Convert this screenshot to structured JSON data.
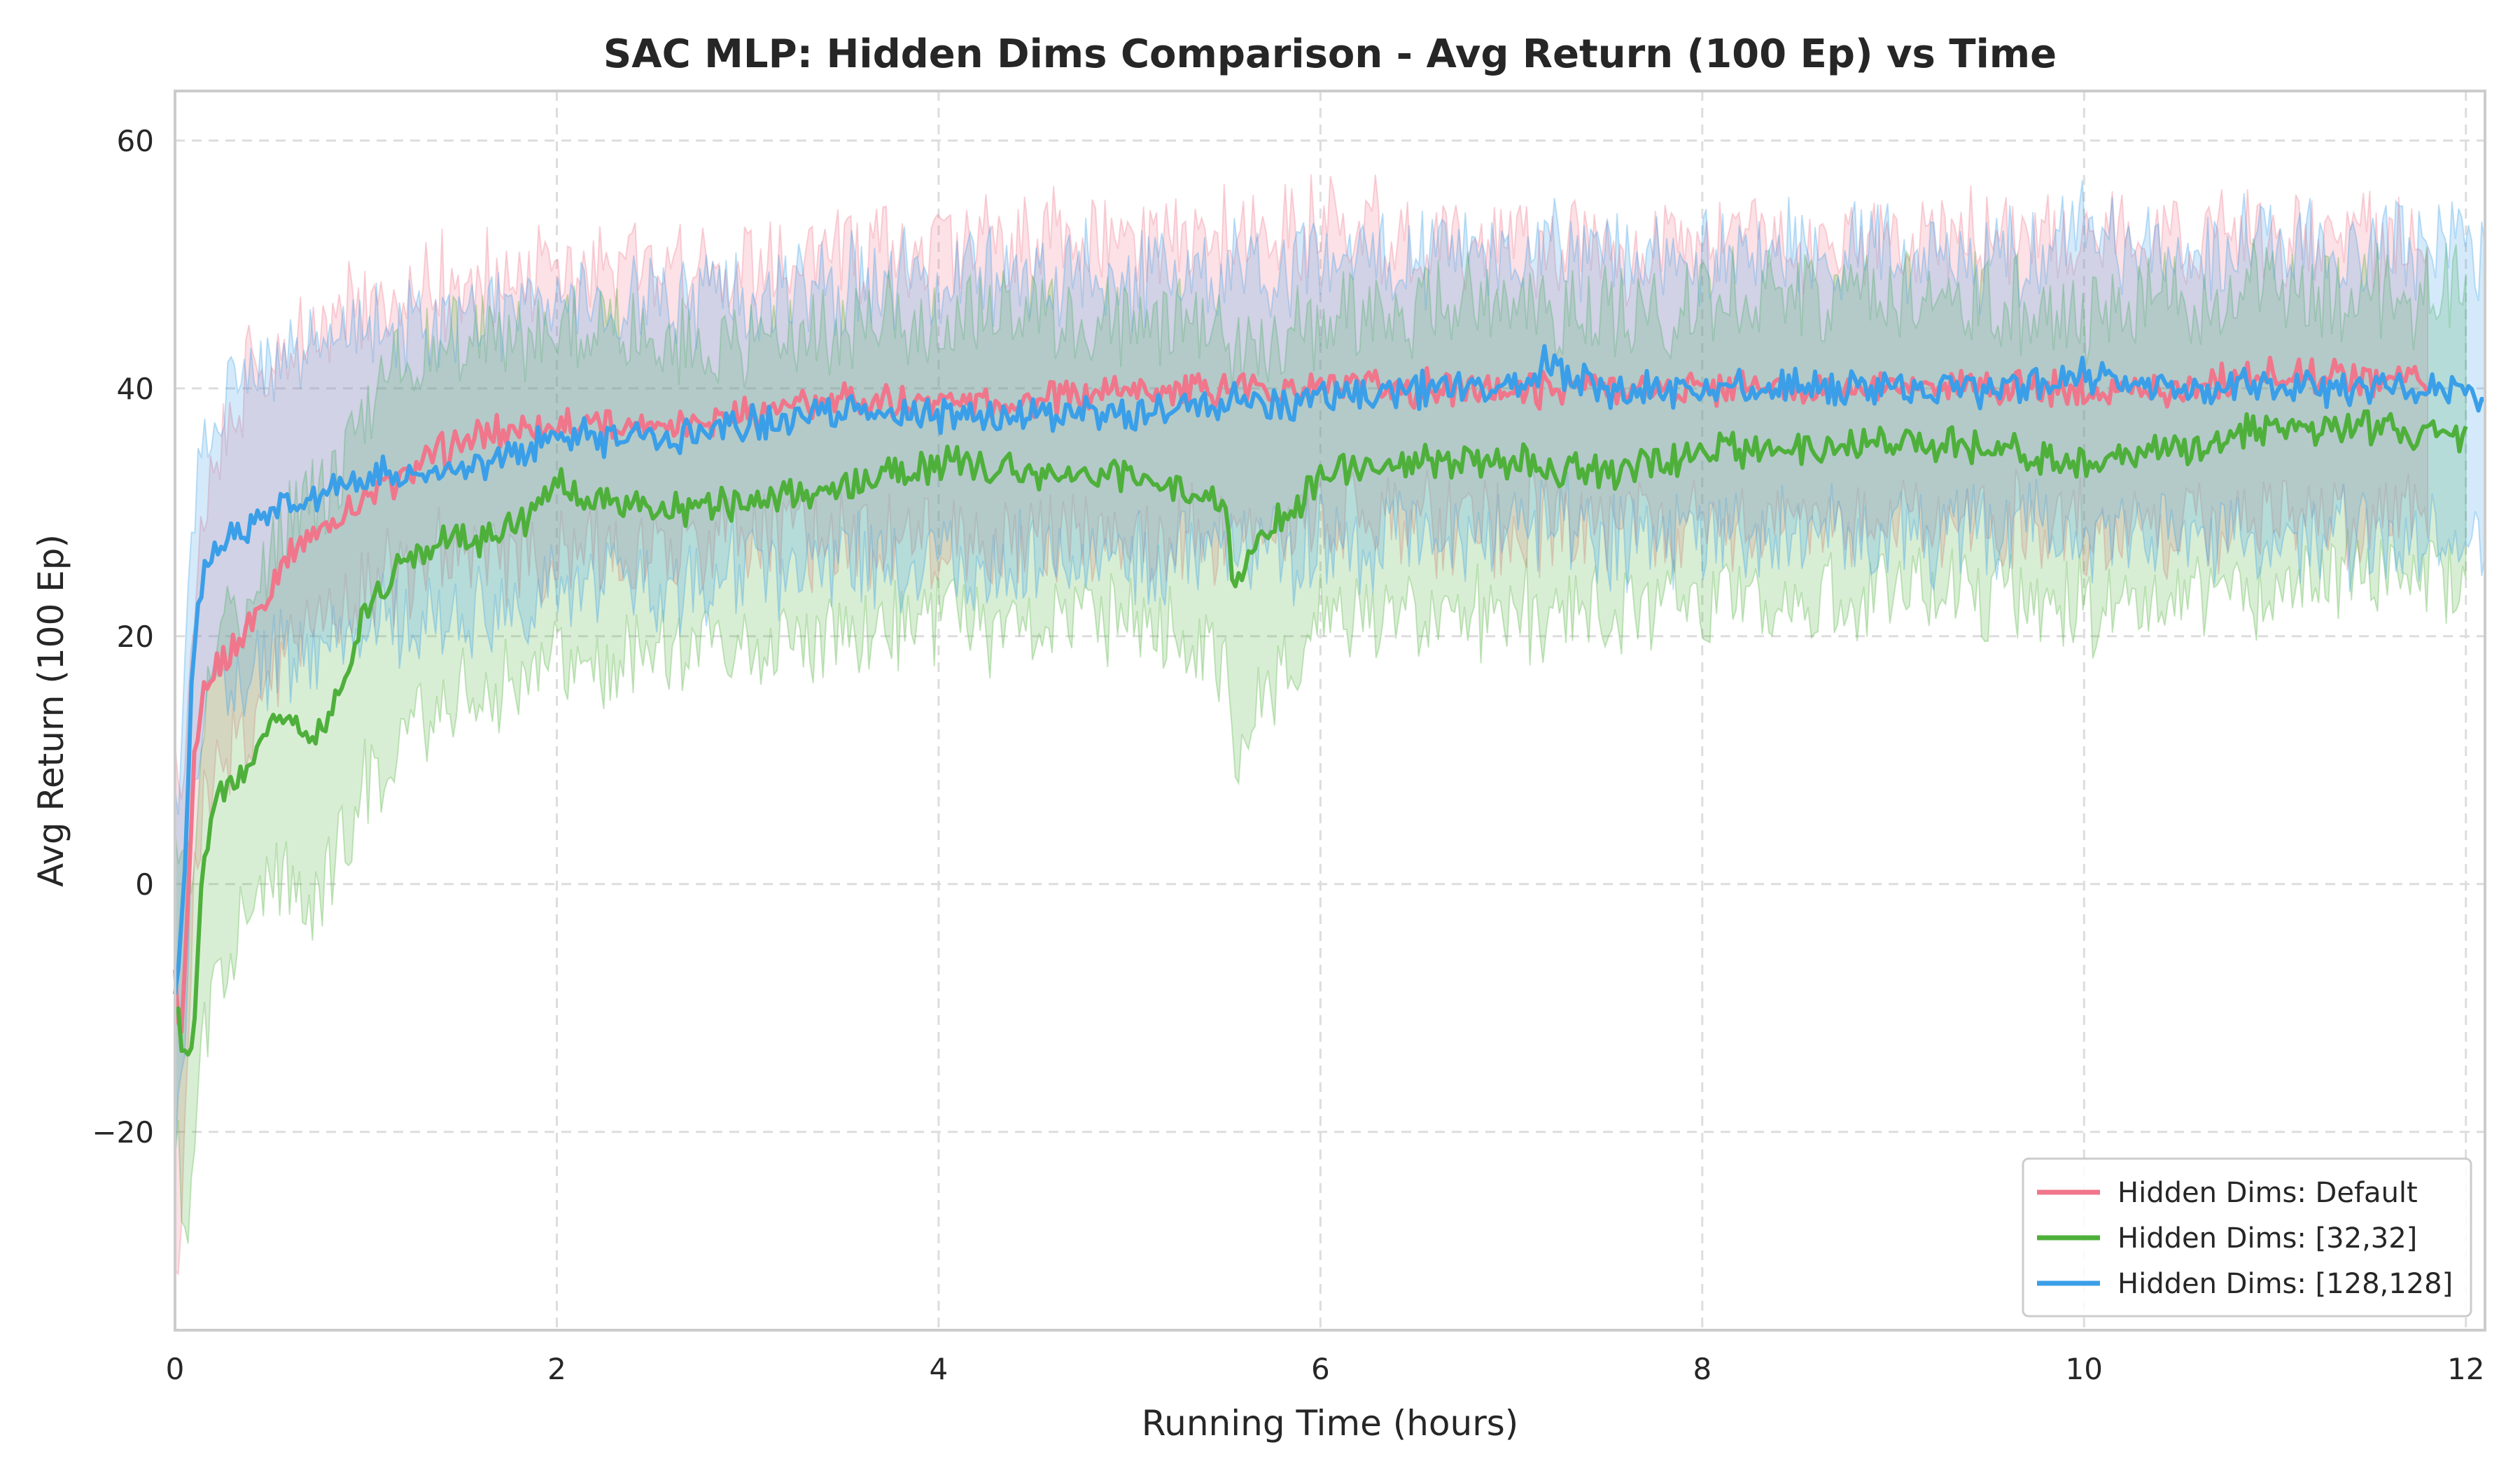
{
  "chart_data": {
    "type": "line",
    "title": "SAC MLP: Hidden Dims Comparison - Avg Return (100 Ep) vs Time",
    "xlabel": "Running Time (hours)",
    "ylabel": "Avg Return (100 Ep)",
    "xlim": [
      0,
      12.1
    ],
    "ylim": [
      -36,
      64
    ],
    "xticks": [
      0,
      2,
      4,
      6,
      8,
      10,
      12
    ],
    "xtick_labels": [
      "0",
      "2",
      "4",
      "6",
      "8",
      "10",
      "12"
    ],
    "yticks": [
      -20,
      0,
      20,
      40,
      60
    ],
    "ytick_labels": [
      "−20",
      "0",
      "20",
      "40",
      "60"
    ],
    "grid": true,
    "legend_position": "lower-right",
    "shaded_band": "mean ± spread (translucent fill)",
    "series": [
      {
        "name": "Hidden Dims: Default",
        "color": "#f0768b",
        "x": [
          0,
          0.03,
          0.06,
          0.1,
          0.15,
          0.2,
          0.3,
          0.4,
          0.5,
          0.6,
          0.7,
          0.8,
          0.9,
          1.0,
          1.2,
          1.4,
          1.6,
          1.8,
          2.0,
          2.5,
          3.0,
          3.5,
          4.0,
          4.5,
          5.0,
          5.5,
          6.0,
          6.5,
          7.0,
          7.5,
          8.0,
          8.5,
          9.0,
          9.5,
          10.0,
          10.5,
          11.0,
          11.5,
          11.8
        ],
        "y": [
          -8,
          -13,
          -5,
          9,
          15,
          17,
          19,
          21,
          24,
          27,
          28,
          29,
          30,
          31,
          33,
          35,
          36,
          37,
          37,
          37,
          38,
          39,
          39,
          39,
          40,
          40,
          40,
          40,
          40,
          40,
          40,
          40,
          40,
          40,
          40,
          40,
          41,
          41,
          41
        ],
        "upper": [
          8,
          5,
          12,
          22,
          30,
          34,
          38,
          41,
          43,
          44,
          45,
          45,
          46,
          46,
          47,
          48,
          49,
          49,
          49,
          50,
          50,
          51,
          51,
          52,
          52,
          52,
          53,
          52,
          52,
          51,
          52,
          52,
          52,
          52,
          52,
          52,
          52,
          52,
          52
        ],
        "lower": [
          -30,
          -28,
          -18,
          -2,
          5,
          8,
          11,
          13,
          16,
          19,
          20,
          22,
          23,
          24,
          25,
          26,
          26,
          27,
          27,
          27,
          28,
          28,
          28,
          28,
          28,
          28,
          29,
          29,
          29,
          29,
          29,
          29,
          29,
          29,
          29,
          29,
          30,
          30,
          30
        ]
      },
      {
        "name": "Hidden Dims: [32,32]",
        "color": "#4eb03b",
        "x": [
          0,
          0.05,
          0.1,
          0.15,
          0.2,
          0.3,
          0.4,
          0.5,
          0.6,
          0.7,
          0.8,
          0.9,
          1.0,
          1.1,
          1.2,
          1.4,
          1.6,
          1.8,
          2.0,
          2.5,
          3.0,
          3.5,
          4.0,
          4.5,
          5.0,
          5.5,
          5.55,
          5.7,
          6.0,
          6.5,
          7.0,
          7.5,
          8.0,
          8.5,
          9.0,
          9.5,
          10.0,
          10.5,
          11.0,
          11.5,
          12.0
        ],
        "y": [
          -10,
          -14,
          -12,
          2,
          6,
          8,
          10,
          13,
          14,
          11,
          13,
          17,
          22,
          24,
          26,
          28,
          28,
          29,
          32,
          30,
          31,
          32,
          34,
          33,
          33,
          31,
          24,
          28,
          33,
          34,
          34,
          33,
          35,
          35,
          36,
          35,
          34,
          35,
          37,
          37,
          36
        ],
        "upper": [
          5,
          0,
          2,
          14,
          18,
          21,
          24,
          27,
          30,
          30,
          32,
          35,
          38,
          40,
          42,
          44,
          44,
          44,
          45,
          44,
          44,
          45,
          46,
          46,
          46,
          45,
          42,
          44,
          46,
          46,
          47,
          46,
          47,
          47,
          48,
          47,
          46,
          47,
          48,
          48,
          48
        ],
        "lower": [
          -22,
          -26,
          -24,
          -12,
          -8,
          -5,
          -3,
          0,
          1,
          -2,
          0,
          4,
          8,
          10,
          12,
          14,
          16,
          16,
          18,
          18,
          19,
          20,
          21,
          21,
          21,
          19,
          10,
          14,
          21,
          22,
          22,
          21,
          23,
          23,
          24,
          23,
          22,
          23,
          24,
          25,
          24
        ]
      },
      {
        "name": "Hidden Dims: [128,128]",
        "color": "#3a9fe8",
        "x": [
          0,
          0.03,
          0.06,
          0.1,
          0.15,
          0.2,
          0.3,
          0.4,
          0.5,
          0.6,
          0.7,
          0.8,
          1.0,
          1.2,
          1.4,
          1.6,
          1.8,
          2.0,
          2.5,
          3.0,
          3.5,
          4.0,
          4.5,
          5.0,
          5.5,
          6.0,
          6.5,
          7.0,
          7.2,
          7.5,
          8.0,
          8.5,
          9.0,
          9.5,
          10.0,
          10.5,
          11.0,
          11.5,
          12.0,
          12.1
        ],
        "y": [
          -10,
          -5,
          5,
          20,
          25,
          27,
          28,
          29,
          30,
          31,
          31,
          32,
          33,
          33,
          33,
          34,
          35,
          36,
          36,
          37,
          38,
          38,
          38,
          38,
          39,
          39,
          40,
          40,
          42,
          40,
          40,
          40,
          40,
          40,
          41,
          40,
          40,
          40,
          40,
          39
        ],
        "upper": [
          5,
          10,
          22,
          32,
          37,
          39,
          40,
          41,
          42,
          43,
          43,
          44,
          45,
          45,
          45,
          46,
          46,
          47,
          47,
          48,
          48,
          49,
          49,
          49,
          50,
          50,
          51,
          51,
          52,
          51,
          51,
          51,
          51,
          51,
          52,
          51,
          51,
          51,
          52,
          51
        ],
        "lower": [
          -22,
          -18,
          -10,
          6,
          12,
          15,
          16,
          17,
          18,
          19,
          19,
          20,
          21,
          21,
          21,
          22,
          23,
          24,
          24,
          25,
          26,
          26,
          26,
          26,
          27,
          27,
          28,
          28,
          30,
          28,
          28,
          28,
          28,
          28,
          29,
          28,
          28,
          28,
          28,
          27
        ]
      }
    ]
  }
}
